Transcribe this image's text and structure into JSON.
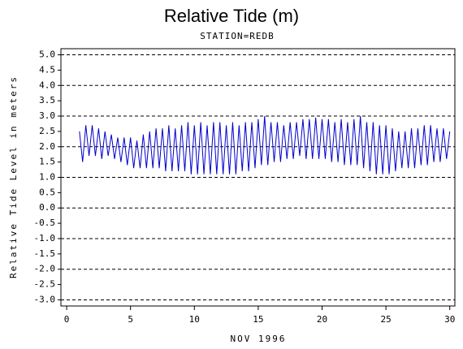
{
  "chart_data": {
    "type": "line",
    "title": "Relative Tide (m)",
    "subtitle": "STATION=REDB",
    "xlabel": "NOV 1996",
    "ylabel": "Relative Tide Level in meters",
    "xlim": [
      -0.45,
      30.4
    ],
    "xticks": [
      0,
      5,
      10,
      15,
      20,
      25,
      30
    ],
    "ylim": [
      -3.2,
      5.2
    ],
    "yticks": [
      {
        "value": 5,
        "label": "5.0"
      },
      {
        "value": 4.5,
        "label": "4.5"
      },
      {
        "value": 4,
        "label": "4.0"
      },
      {
        "value": 3.5,
        "label": "3.5"
      },
      {
        "value": 3,
        "label": "3.0"
      },
      {
        "value": 2.5,
        "label": "2.5"
      },
      {
        "value": 2,
        "label": "2.0"
      },
      {
        "value": 1.5,
        "label": "1.5"
      },
      {
        "value": 1,
        "label": "1.0"
      },
      {
        "value": 0.5,
        "label": "0.5"
      },
      {
        "value": 0,
        "label": "0.0"
      },
      {
        "value": -0.5,
        "label": "-0.5"
      },
      {
        "value": -1,
        "label": "-1.0"
      },
      {
        "value": -1.5,
        "label": "-1.5"
      },
      {
        "value": -2,
        "label": "-2.0"
      },
      {
        "value": -2.5,
        "label": "-2.5"
      },
      {
        "value": -3,
        "label": "-3.0"
      }
    ],
    "grid": true,
    "series": [
      {
        "color": "#0000cc",
        "x": [
          1,
          1.25,
          1.5,
          1.75,
          2,
          2.25,
          2.5,
          2.75,
          3,
          3.25,
          3.5,
          3.75,
          4,
          4.25,
          4.5,
          4.75,
          5,
          5.25,
          5.5,
          5.75,
          6,
          6.25,
          6.5,
          6.75,
          7,
          7.25,
          7.5,
          7.75,
          8,
          8.25,
          8.5,
          8.75,
          9,
          9.25,
          9.5,
          9.75,
          10,
          10.25,
          10.5,
          10.75,
          11,
          11.25,
          11.5,
          11.75,
          12,
          12.25,
          12.5,
          12.75,
          13,
          13.25,
          13.5,
          13.75,
          14,
          14.25,
          14.5,
          14.75,
          15,
          15.25,
          15.5,
          15.75,
          16,
          16.25,
          16.5,
          16.75,
          17,
          17.25,
          17.5,
          17.75,
          18,
          18.25,
          18.5,
          18.75,
          19,
          19.25,
          19.5,
          19.75,
          20,
          20.25,
          20.5,
          20.75,
          21,
          21.25,
          21.5,
          21.75,
          22,
          22.25,
          22.5,
          22.75,
          23,
          23.25,
          23.5,
          23.75,
          24,
          24.25,
          24.5,
          24.75,
          25,
          25.25,
          25.5,
          25.75,
          26,
          26.25,
          26.5,
          26.75,
          27,
          27.25,
          27.5,
          27.75,
          28,
          28.25,
          28.5,
          28.75,
          29,
          29.25,
          29.5,
          29.75,
          30
        ],
        "values": [
          2.5,
          1.5,
          2.7,
          1.7,
          2.7,
          1.7,
          2.6,
          1.6,
          2.5,
          1.7,
          2.4,
          1.6,
          2.3,
          1.5,
          2.3,
          1.4,
          2.3,
          1.3,
          2.2,
          1.3,
          2.4,
          1.3,
          2.5,
          1.3,
          2.6,
          1.3,
          2.6,
          1.2,
          2.7,
          1.2,
          2.6,
          1.2,
          2.7,
          1.2,
          2.8,
          1.1,
          2.7,
          1.1,
          2.8,
          1.1,
          2.7,
          1.1,
          2.8,
          1.1,
          2.8,
          1.1,
          2.7,
          1.1,
          2.8,
          1.1,
          2.7,
          1.2,
          2.8,
          1.2,
          2.8,
          1.3,
          2.9,
          1.4,
          3.0,
          1.4,
          2.8,
          1.5,
          2.8,
          1.5,
          2.7,
          1.6,
          2.8,
          1.6,
          2.8,
          1.7,
          2.9,
          1.6,
          2.9,
          1.6,
          2.95,
          1.6,
          2.9,
          1.6,
          2.9,
          1.5,
          2.8,
          1.5,
          2.9,
          1.4,
          2.8,
          1.4,
          2.9,
          1.4,
          3.0,
          1.3,
          2.8,
          1.2,
          2.8,
          1.1,
          2.7,
          1.1,
          2.7,
          1.1,
          2.6,
          1.2,
          2.5,
          1.3,
          2.5,
          1.3,
          2.6,
          1.3,
          2.6,
          1.4,
          2.7,
          1.4,
          2.7,
          1.5,
          2.6,
          1.5,
          2.6,
          1.6,
          2.5
        ]
      }
    ]
  }
}
